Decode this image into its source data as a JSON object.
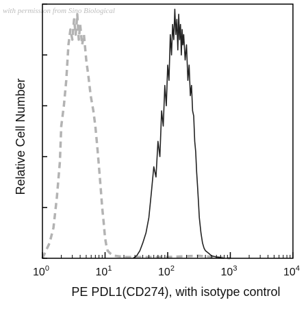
{
  "watermark": "with permission from Sino Biological",
  "chart_data": {
    "type": "line",
    "xlabel": "PE PDL1(CD274), with isotype control",
    "ylabel": "Relative Cell Number",
    "xscale": "log",
    "xlim": [
      1,
      10000
    ],
    "x_ticks": [
      {
        "base": "10",
        "exp": "0"
      },
      {
        "base": "10",
        "exp": "1"
      },
      {
        "base": "10",
        "exp": "2"
      },
      {
        "base": "10",
        "exp": "3"
      },
      {
        "base": "10",
        "exp": "4"
      }
    ],
    "ylim": [
      0,
      100
    ],
    "y_tick_labels": "none",
    "grid": false,
    "legend": "none",
    "series": [
      {
        "style": "dashed",
        "color": "#b3b3b3",
        "x": [
          1.0,
          1.3,
          1.5,
          1.7,
          1.9,
          2.0,
          2.2,
          2.4,
          2.6,
          2.8,
          3.0,
          3.2,
          3.4,
          3.6,
          3.8,
          4.0,
          4.3,
          4.6,
          5.0,
          5.4,
          5.9,
          6.5,
          7.0,
          7.5,
          8.0,
          8.5,
          9.0,
          9.5,
          10.0,
          10.5,
          11.0,
          12.0,
          14.0,
          20.0,
          50.0,
          100.0,
          300.0,
          1000.0
        ],
        "y": [
          0,
          6,
          12,
          24,
          38,
          52,
          60,
          70,
          84,
          90,
          86,
          94,
          88,
          96,
          86,
          92,
          84,
          88,
          78,
          72,
          64,
          58,
          52,
          44,
          36,
          28,
          20,
          14,
          8,
          5,
          3,
          2,
          1,
          0.5,
          0.5,
          0.5,
          1,
          0
        ]
      },
      {
        "style": "solid",
        "color": "#222222",
        "x": [
          28,
          32,
          36,
          40,
          45,
          50,
          55,
          60,
          65,
          70,
          75,
          80,
          85,
          90,
          95,
          100,
          105,
          110,
          115,
          120,
          125,
          130,
          135,
          140,
          145,
          150,
          155,
          160,
          165,
          170,
          175,
          180,
          190,
          200,
          210,
          220,
          230,
          240,
          250,
          260,
          270,
          280,
          290,
          300,
          310,
          320,
          340,
          360,
          380,
          400,
          450,
          500,
          600,
          800
        ],
        "y": [
          0,
          1,
          3,
          6,
          10,
          16,
          26,
          36,
          32,
          46,
          40,
          58,
          52,
          68,
          60,
          76,
          70,
          88,
          80,
          92,
          86,
          98,
          88,
          94,
          82,
          96,
          86,
          92,
          80,
          90,
          84,
          88,
          78,
          84,
          70,
          76,
          64,
          68,
          58,
          56,
          46,
          42,
          34,
          28,
          22,
          16,
          10,
          6,
          4,
          3,
          2,
          1,
          0.5,
          0
        ]
      }
    ]
  }
}
